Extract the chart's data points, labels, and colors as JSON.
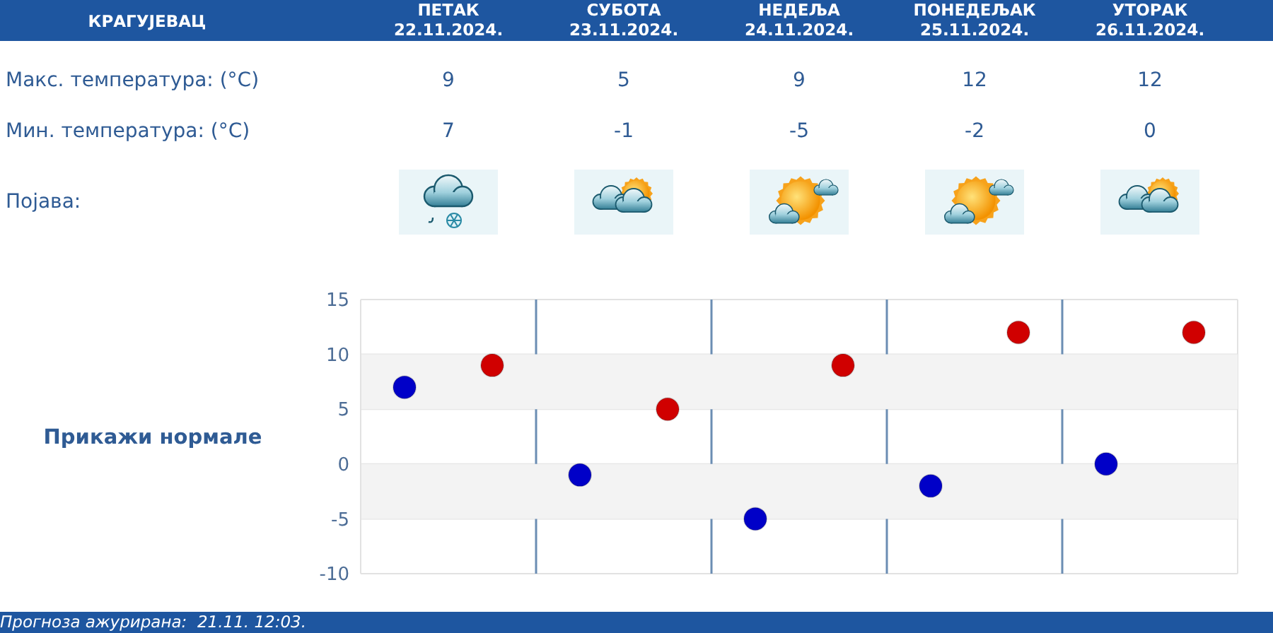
{
  "chart_data": {
    "type": "scatter",
    "title": "КРАГУЈЕВАЦ",
    "categories": [
      null,
      null,
      null,
      null,
      null
    ],
    "series": [
      {
        "color": "#d00000",
        "values": [
          9,
          5,
          9,
          12,
          12
        ]
      },
      {
        "color": "#0000c8",
        "values": [
          7,
          -1,
          -5,
          -2,
          0
        ]
      }
    ],
    "ylim": [
      -10,
      15
    ],
    "yticks": [
      -10,
      -5,
      0,
      5,
      10,
      15
    ],
    "grid": true,
    "bands": [
      {
        "axis": "y",
        "from": 5,
        "to": 10,
        "color": "#f3f3f3"
      },
      {
        "axis": "y",
        "from": -5,
        "to": 0,
        "color": "#f3f3f3"
      }
    ],
    "marker": "circle",
    "data_labels": true,
    "annotations": [
      "ПЕТАК\n22.11.2024.",
      "СУБОТА\n23.11.2024.",
      "НЕДЕЉА\n24.11.2024.",
      "ПОНЕДЕЉАК\n25.11.2024.",
      "УТОРАК\n26.11.2024.",
      "Макс. температура: (°C)",
      "Мин. температура: (°C)",
      "Појава:",
      "Прикажи нормале",
      "Прогноза ажурирана:  21.11. 12:03."
    ]
  }
}
